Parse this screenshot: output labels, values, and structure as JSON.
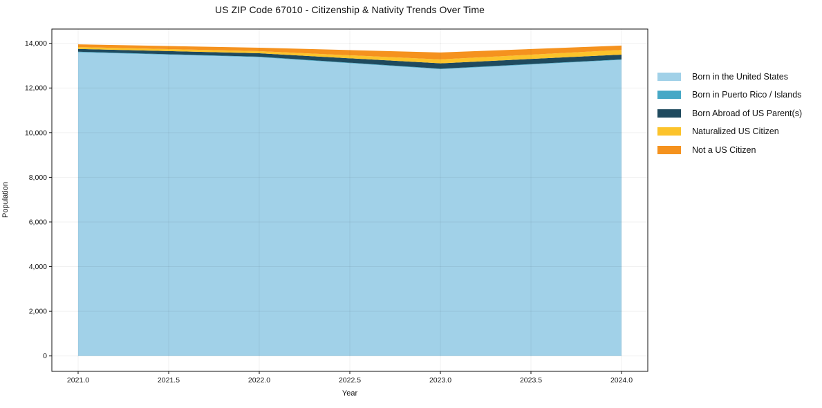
{
  "chart_data": {
    "type": "area",
    "stacked": true,
    "title": "US ZIP Code 67010 - Citizenship & Nativity Trends Over Time",
    "xlabel": "Year",
    "ylabel": "Population",
    "x": [
      2021,
      2022,
      2023,
      2024
    ],
    "series": [
      {
        "name": "Born in the United States",
        "color": "#a1d1e8",
        "values": [
          13600,
          13380,
          12840,
          13260
        ]
      },
      {
        "name": "Born in Puerto Rico / Islands",
        "color": "#46a8c6",
        "values": [
          25,
          20,
          25,
          20
        ]
      },
      {
        "name": "Born Abroad of US Parent(s)",
        "color": "#1f4a5e",
        "values": [
          125,
          155,
          240,
          215
        ]
      },
      {
        "name": "Naturalized US Citizen",
        "color": "#fcc32b",
        "values": [
          85,
          95,
          175,
          210
        ]
      },
      {
        "name": "Not a US Citizen",
        "color": "#f5921e",
        "values": [
          120,
          155,
          310,
          195
        ]
      }
    ],
    "xlim": [
      2020.855,
      2024.145
    ],
    "ylim": [
      -690,
      14640
    ],
    "xticks": {
      "values": [
        2021.0,
        2021.5,
        2022.0,
        2022.5,
        2023.0,
        2023.5,
        2024.0
      ],
      "labels": [
        "2021.0",
        "2021.5",
        "2022.0",
        "2022.5",
        "2023.0",
        "2023.5",
        "2024.0"
      ]
    },
    "yticks": {
      "values": [
        0,
        2000,
        4000,
        6000,
        8000,
        10000,
        12000,
        14000
      ],
      "labels": [
        "0",
        "2,000",
        "4,000",
        "6,000",
        "8,000",
        "10,000",
        "12,000",
        "14,000"
      ]
    },
    "grid": true,
    "legend_position": "right-outside"
  },
  "colors": {
    "background": "#ffffff",
    "spine": "#111111",
    "tick_text": "#111111",
    "gridline": "rgba(0,0,0,0.06)"
  }
}
